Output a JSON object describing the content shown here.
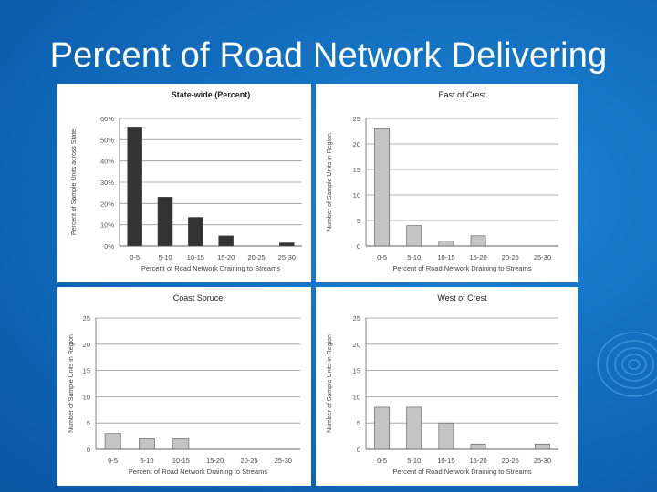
{
  "slide": {
    "title": "Percent of Road Network Delivering"
  },
  "colors": {
    "background": "#136fc0",
    "statewide_bar": "#333333",
    "region_bar": "#c4c4c4",
    "grid": "#999999"
  },
  "chart_data": [
    {
      "type": "bar",
      "title": "State-wide (Percent)",
      "xlabel": "Percent of Road Network Draining to Streams",
      "ylabel": "Percent of Sample Units across State",
      "categories": [
        "0-5",
        "5-10",
        "10-15",
        "15-20",
        "20-25",
        "25-30"
      ],
      "values": [
        56,
        23,
        13.5,
        4.8,
        0,
        1.5
      ],
      "ylim": [
        0,
        60
      ],
      "yticks": [
        "0%",
        "10%",
        "20%",
        "30%",
        "40%",
        "50%",
        "60%"
      ],
      "grid": true
    },
    {
      "type": "bar",
      "title": "East of Crest",
      "xlabel": "Percent of Road Network Draining to Streams",
      "ylabel": "Number of Sample Units in Region",
      "categories": [
        "0-5",
        "5-10",
        "10-15",
        "15-20",
        "20-25",
        "25-30"
      ],
      "values": [
        23,
        4,
        1,
        2,
        0,
        0
      ],
      "ylim": [
        0,
        25
      ],
      "yticks": [
        "0",
        "5",
        "10",
        "15",
        "20",
        "25"
      ],
      "grid": true
    },
    {
      "type": "bar",
      "title": "Coast Spruce",
      "xlabel": "Percent of Road Network Draining to Streams",
      "ylabel": "Number of Sample Units in Region",
      "categories": [
        "0-5",
        "5-10",
        "10-15",
        "15-20",
        "20-25",
        "25-30"
      ],
      "values": [
        3,
        2,
        2,
        0,
        0,
        0
      ],
      "ylim": [
        0,
        25
      ],
      "yticks": [
        "0",
        "5",
        "10",
        "15",
        "20",
        "25"
      ],
      "grid": true
    },
    {
      "type": "bar",
      "title": "West of Crest",
      "xlabel": "Percent of Road Network Draining to Streams",
      "ylabel": "Number of Sample Units in Region",
      "categories": [
        "0-5",
        "5-10",
        "10-15",
        "15-20",
        "20-25",
        "25-30"
      ],
      "values": [
        8,
        8,
        5,
        1,
        0,
        1
      ],
      "ylim": [
        0,
        25
      ],
      "yticks": [
        "0",
        "5",
        "10",
        "15",
        "20",
        "25"
      ],
      "grid": true
    }
  ]
}
